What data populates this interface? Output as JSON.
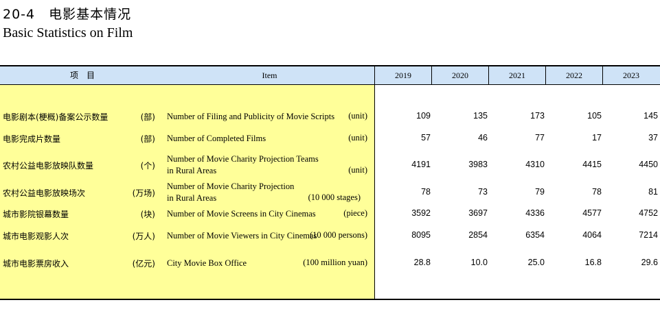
{
  "title_cn": "20-4　电影基本情况",
  "title_en": "Basic Statistics on Film",
  "header": {
    "item_cn": "项　目",
    "item_en": "Item",
    "years": [
      "2019",
      "2020",
      "2021",
      "2022",
      "2023"
    ]
  },
  "rows": [
    {
      "cn": "电影剧本(梗概)备案公示数量",
      "cn_unit": "(部)",
      "en_lines": [
        "Number of Filing and Publicity of Movie Scripts"
      ],
      "en_unit": "(unit)",
      "values": [
        "109",
        "135",
        "173",
        "105",
        "145"
      ]
    },
    {
      "cn": "电影完成片数量",
      "cn_unit": "(部)",
      "en_lines": [
        "Number of Completed Films"
      ],
      "en_unit": "(unit)",
      "values": [
        "57",
        "46",
        "77",
        "17",
        "37"
      ]
    },
    {
      "cn": "农村公益电影放映队数量",
      "cn_unit": "(个)",
      "en_lines": [
        "Number of Movie Charity Projection Teams",
        "in Rural Areas"
      ],
      "en_unit": "(unit)",
      "values": [
        "4191",
        "3983",
        "4310",
        "4415",
        "4450"
      ]
    },
    {
      "cn": "农村公益电影放映场次",
      "cn_unit": "(万场)",
      "en_lines": [
        "Number of Movie Charity Projection",
        "in Rural Areas"
      ],
      "en_unit": "(10 000 stages)",
      "values": [
        "78",
        "73",
        "79",
        "78",
        "81"
      ]
    },
    {
      "cn": "城市影院银幕数量",
      "cn_unit": "(块)",
      "en_lines": [
        "Number of Movie Screens in City Cinemas"
      ],
      "en_unit": "(piece)",
      "values": [
        "3592",
        "3697",
        "4336",
        "4577",
        "4752"
      ]
    },
    {
      "cn": "城市电影观影人次",
      "cn_unit": "(万人)",
      "en_lines": [
        "Number of Movie Viewers in City Cinemas"
      ],
      "en_unit": "(10 000 persons)",
      "values": [
        "8095",
        "2854",
        "6354",
        "4064",
        "7214"
      ]
    },
    {
      "cn": "城市电影票房收入",
      "cn_unit": "(亿元)",
      "en_lines": [
        "City Movie Box Office"
      ],
      "en_unit": "(100 million yuan)",
      "values": [
        "28.8",
        "10.0",
        "25.0",
        "16.8",
        "29.6"
      ]
    }
  ]
}
